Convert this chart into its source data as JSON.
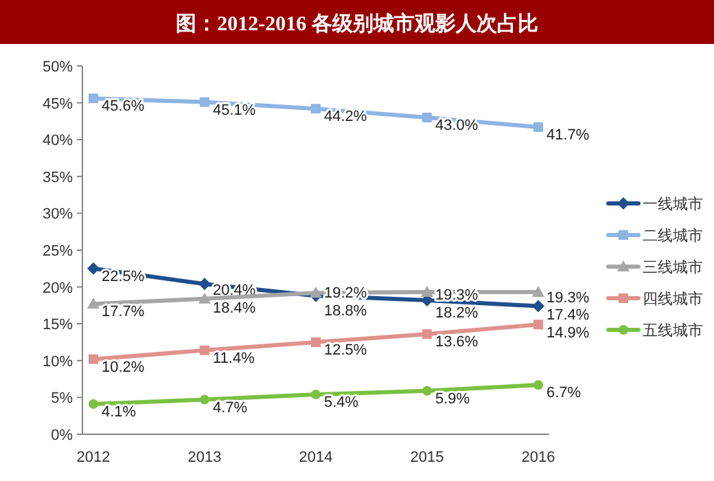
{
  "chart_data": {
    "type": "line",
    "title": "图：2012-2016 各级别城市观影人次占比",
    "categories": [
      "2012",
      "2013",
      "2014",
      "2015",
      "2016"
    ],
    "ylim": [
      0,
      50
    ],
    "yticks": [
      {
        "value": 0,
        "label": "0%"
      },
      {
        "value": 5,
        "label": "5%"
      },
      {
        "value": 10,
        "label": "10%"
      },
      {
        "value": 15,
        "label": "15%"
      },
      {
        "value": 20,
        "label": "20%"
      },
      {
        "value": 25,
        "label": "25%"
      },
      {
        "value": 30,
        "label": "30%"
      },
      {
        "value": 35,
        "label": "35%"
      },
      {
        "value": 40,
        "label": "40%"
      },
      {
        "value": 45,
        "label": "45%"
      },
      {
        "value": 50,
        "label": "50%"
      }
    ],
    "legend": "right",
    "grid": false,
    "series": [
      {
        "name": "一线城市",
        "color": "#1f4e8c",
        "marker": "diamond",
        "values": [
          22.5,
          20.4,
          18.8,
          18.2,
          17.4
        ],
        "value_labels": [
          "22.5%",
          "20.4%",
          "18.8%",
          "18.2%",
          "17.4%"
        ]
      },
      {
        "name": "二线城市",
        "color": "#8db4e2",
        "marker": "square",
        "values": [
          45.6,
          45.1,
          44.2,
          43.0,
          41.7
        ],
        "value_labels": [
          "45.6%",
          "45.1%",
          "44.2%",
          "43.0%",
          "41.7%"
        ]
      },
      {
        "name": "三线城市",
        "color": "#a6a6a6",
        "marker": "triangle",
        "values": [
          17.7,
          18.4,
          19.2,
          19.3,
          19.3
        ],
        "value_labels": [
          "17.7%",
          "18.4%",
          "19.2%",
          "19.3%",
          "19.3%"
        ]
      },
      {
        "name": "四线城市",
        "color": "#e0918c",
        "marker": "square",
        "values": [
          10.2,
          11.4,
          12.5,
          13.6,
          14.9
        ],
        "value_labels": [
          "10.2%",
          "11.4%",
          "12.5%",
          "13.6%",
          "14.9%"
        ]
      },
      {
        "name": "五线城市",
        "color": "#7ac143",
        "marker": "circle",
        "values": [
          4.1,
          4.7,
          5.4,
          5.9,
          6.7
        ],
        "value_labels": [
          "4.1%",
          "4.7%",
          "5.4%",
          "5.9%",
          "6.7%"
        ]
      }
    ]
  }
}
